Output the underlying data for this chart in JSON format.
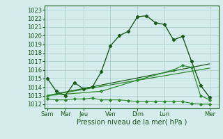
{
  "background_color": "#d4ecec",
  "grid_color": "#b0d0d0",
  "line_color_dark": "#1a5c1a",
  "line_color_medium": "#2e8b2e",
  "xlabel": "Pression niveau de la mer( hPa )",
  "ylim": [
    1011.5,
    1023.5
  ],
  "yticks": [
    1012,
    1013,
    1014,
    1015,
    1016,
    1017,
    1018,
    1019,
    1020,
    1021,
    1022,
    1023
  ],
  "day_labels": [
    "Sam",
    "Mar",
    "Jeu",
    "Ven",
    "Dim",
    "Lun",
    "Mer"
  ],
  "day_positions": [
    0,
    2,
    4,
    7,
    10,
    13,
    18
  ],
  "xlim": [
    -0.3,
    19.0
  ],
  "series1_x": [
    0,
    1,
    2,
    3,
    4,
    5,
    6,
    7,
    8,
    9,
    10,
    11,
    12,
    13,
    14,
    15,
    16,
    17,
    18
  ],
  "series1_y": [
    1015.0,
    1013.5,
    1013.0,
    1014.5,
    1013.8,
    1014.0,
    1015.8,
    1018.8,
    1020.0,
    1020.5,
    1022.2,
    1022.3,
    1021.5,
    1021.3,
    1019.5,
    1019.9,
    1017.0,
    1014.2,
    1012.8
  ],
  "series2_x": [
    0,
    1,
    2,
    3,
    4,
    5,
    6,
    7,
    8,
    9,
    10,
    11,
    12,
    13,
    14,
    15,
    16,
    17,
    18
  ],
  "series2_y": [
    1012.6,
    1012.5,
    1012.5,
    1012.6,
    1012.6,
    1012.7,
    1012.5,
    1012.5,
    1012.5,
    1012.4,
    1012.3,
    1012.3,
    1012.3,
    1012.3,
    1012.3,
    1012.3,
    1012.1,
    1012.0,
    1012.0
  ],
  "series3_x": [
    0,
    18
  ],
  "series3_y": [
    1013.0,
    1016.7
  ],
  "series4_x": [
    0,
    18
  ],
  "series4_y": [
    1013.0,
    1016.2
  ],
  "series5_x": [
    0,
    6,
    10,
    14,
    15,
    16,
    17,
    18
  ],
  "series5_y": [
    1013.0,
    1013.5,
    1014.8,
    1016.0,
    1016.5,
    1016.3,
    1013.0,
    1012.5
  ]
}
